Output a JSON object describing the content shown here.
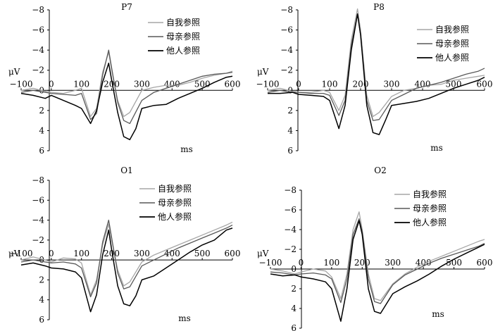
{
  "chart_data": [
    {
      "type": "line",
      "title": "P7",
      "xlabel": "ms",
      "ylabel": "μV",
      "xlim": [
        -100,
        600
      ],
      "ylim": [
        6,
        -8
      ],
      "y_inverted": true,
      "xticks": [
        -100,
        0,
        100,
        200,
        300,
        400,
        500,
        600
      ],
      "yticks": [
        -8,
        -6,
        -4,
        -2,
        0,
        2,
        4,
        6
      ],
      "legend": "top-right",
      "series": [
        {
          "name": "自我参照",
          "color": "#a6a6a6",
          "x": [
            -100,
            -60,
            -20,
            0,
            40,
            80,
            100,
            130,
            150,
            170,
            190,
            200,
            220,
            240,
            260,
            300,
            340,
            380,
            420,
            460,
            500,
            540,
            580,
            600
          ],
          "y": [
            0.0,
            -0.2,
            0.1,
            0.2,
            0.3,
            0.0,
            -0.2,
            2.6,
            1.8,
            -1.8,
            -3.8,
            -2.0,
            1.0,
            2.6,
            2.2,
            0.0,
            -0.3,
            -0.5,
            -0.5,
            -0.8,
            -1.2,
            -1.5,
            -1.7,
            -1.9
          ]
        },
        {
          "name": "母亲参照",
          "color": "#595959",
          "x": [
            -100,
            -60,
            -20,
            0,
            40,
            80,
            100,
            130,
            150,
            170,
            190,
            200,
            220,
            240,
            260,
            300,
            340,
            380,
            420,
            460,
            500,
            540,
            580,
            600
          ],
          "y": [
            0.2,
            0.0,
            0.2,
            0.3,
            0.4,
            0.5,
            0.3,
            2.9,
            2.3,
            -1.5,
            -4.0,
            -2.2,
            1.2,
            3.0,
            3.3,
            1.0,
            0.2,
            -0.2,
            -0.6,
            -1.0,
            -1.4,
            -1.6,
            -1.7,
            -1.8
          ]
        },
        {
          "name": "他人参照",
          "color": "#000000",
          "x": [
            -100,
            -60,
            -20,
            0,
            40,
            80,
            100,
            130,
            150,
            170,
            190,
            200,
            220,
            240,
            260,
            280,
            300,
            340,
            380,
            420,
            460,
            500,
            540,
            580,
            600
          ],
          "y": [
            0.3,
            0.5,
            0.8,
            0.5,
            1.0,
            1.5,
            1.8,
            3.3,
            2.0,
            -0.8,
            -2.7,
            -1.0,
            2.2,
            4.6,
            4.9,
            3.8,
            1.8,
            1.5,
            1.4,
            0.8,
            0.3,
            -0.2,
            -0.8,
            -1.3,
            -1.4
          ]
        }
      ]
    },
    {
      "type": "line",
      "title": "P8",
      "xlabel": "ms",
      "ylabel": "μV",
      "xlim": [
        -100,
        600
      ],
      "ylim": [
        6,
        -8
      ],
      "y_inverted": true,
      "xticks": [
        -100,
        0,
        100,
        200,
        300,
        400,
        500,
        600
      ],
      "yticks": [
        -8,
        -6,
        -4,
        -2,
        0,
        2,
        4,
        6
      ],
      "legend": "top-right",
      "series": [
        {
          "name": "自我参照",
          "color": "#a6a6a6",
          "x": [
            -100,
            -60,
            -20,
            0,
            40,
            80,
            100,
            130,
            150,
            170,
            190,
            200,
            220,
            240,
            260,
            300,
            340,
            380,
            420,
            460,
            500,
            540,
            580,
            600
          ],
          "y": [
            0.0,
            -0.2,
            0.1,
            0.2,
            0.2,
            0.0,
            0.2,
            2.0,
            0.5,
            -5.0,
            -8.1,
            -6.0,
            0.5,
            2.6,
            2.2,
            0.6,
            0.0,
            -0.2,
            -0.5,
            -0.6,
            -1.0,
            -1.2,
            -1.4,
            -1.5
          ]
        },
        {
          "name": "母亲参照",
          "color": "#595959",
          "x": [
            -100,
            -60,
            -20,
            0,
            40,
            80,
            100,
            130,
            150,
            170,
            190,
            200,
            220,
            240,
            260,
            300,
            340,
            380,
            420,
            460,
            500,
            540,
            580,
            600
          ],
          "y": [
            0.2,
            0.0,
            0.2,
            0.2,
            0.3,
            0.3,
            0.5,
            2.5,
            1.0,
            -4.5,
            -7.6,
            -5.5,
            1.0,
            3.0,
            2.9,
            1.0,
            0.4,
            -0.2,
            -0.5,
            -0.8,
            -1.2,
            -1.6,
            -1.9,
            -2.2
          ]
        },
        {
          "name": "他人参照",
          "color": "#000000",
          "x": [
            -100,
            -60,
            -20,
            0,
            40,
            80,
            100,
            130,
            150,
            170,
            190,
            200,
            220,
            240,
            260,
            280,
            300,
            340,
            380,
            420,
            460,
            500,
            540,
            580,
            600
          ],
          "y": [
            0.3,
            0.3,
            0.2,
            0.4,
            0.5,
            0.6,
            1.0,
            3.8,
            1.5,
            -4.0,
            -7.6,
            -5.5,
            1.5,
            4.2,
            4.4,
            3.0,
            1.5,
            1.3,
            1.1,
            0.8,
            0.3,
            -0.2,
            -0.6,
            -1.0,
            -1.3
          ]
        }
      ]
    },
    {
      "type": "line",
      "title": "O1",
      "xlabel": "ms",
      "ylabel": "μV",
      "xlim": [
        -100,
        600
      ],
      "ylim": [
        6,
        -8
      ],
      "y_inverted": true,
      "xticks": [
        -100,
        0,
        100,
        200,
        300,
        400,
        500,
        600
      ],
      "yticks": [
        -8,
        -6,
        -4,
        -2,
        0,
        2,
        4,
        6
      ],
      "legend": "top-right",
      "series": [
        {
          "name": "自我参照",
          "color": "#a6a6a6",
          "x": [
            -100,
            -60,
            -20,
            0,
            40,
            80,
            100,
            130,
            150,
            170,
            190,
            200,
            220,
            240,
            260,
            300,
            340,
            380,
            420,
            460,
            500,
            540,
            580,
            600
          ],
          "y": [
            0.0,
            -0.3,
            0.0,
            0.2,
            -0.2,
            -0.1,
            0.3,
            3.5,
            2.0,
            -1.5,
            -3.6,
            -2.0,
            1.0,
            2.6,
            2.2,
            0.2,
            -0.5,
            -1.0,
            -1.5,
            -2.0,
            -2.5,
            -3.0,
            -3.5,
            -3.8
          ]
        },
        {
          "name": "母亲参照",
          "color": "#595959",
          "x": [
            -100,
            -60,
            -20,
            0,
            40,
            80,
            100,
            130,
            150,
            170,
            190,
            200,
            220,
            240,
            260,
            300,
            340,
            380,
            420,
            460,
            500,
            540,
            580,
            600
          ],
          "y": [
            0.2,
            0.0,
            0.2,
            0.3,
            0.2,
            0.4,
            0.8,
            3.7,
            2.3,
            -1.8,
            -4.0,
            -2.2,
            1.3,
            2.9,
            2.7,
            0.6,
            0.0,
            -0.6,
            -1.2,
            -1.7,
            -2.2,
            -2.7,
            -3.2,
            -3.5
          ]
        },
        {
          "name": "他人参照",
          "color": "#000000",
          "x": [
            -100,
            -60,
            -20,
            0,
            40,
            80,
            100,
            130,
            150,
            170,
            190,
            200,
            220,
            240,
            260,
            280,
            300,
            340,
            380,
            420,
            460,
            500,
            540,
            580,
            600
          ],
          "y": [
            0.5,
            0.3,
            0.6,
            0.8,
            0.9,
            1.2,
            1.8,
            5.2,
            3.5,
            -0.5,
            -3.0,
            -1.0,
            2.6,
            4.4,
            4.6,
            3.6,
            2.0,
            1.6,
            0.8,
            0.0,
            -0.8,
            -1.5,
            -2.0,
            -3.0,
            -3.2
          ]
        }
      ]
    },
    {
      "type": "line",
      "title": "O2",
      "xlabel": "ms",
      "ylabel": "μV",
      "xlim": [
        -100,
        600
      ],
      "ylim": [
        6,
        -8
      ],
      "y_inverted": true,
      "xticks": [
        -100,
        0,
        100,
        200,
        300,
        400,
        500,
        600
      ],
      "yticks": [
        -8,
        -6,
        -4,
        -2,
        0,
        2,
        4,
        6
      ],
      "legend": "top-right",
      "series": [
        {
          "name": "自我参照",
          "color": "#a6a6a6",
          "x": [
            -100,
            -60,
            -20,
            0,
            40,
            80,
            100,
            130,
            150,
            170,
            190,
            200,
            220,
            240,
            260,
            300,
            340,
            380,
            420,
            460,
            500,
            540,
            580,
            600
          ],
          "y": [
            0.0,
            0.2,
            0.5,
            0.3,
            0.0,
            0.2,
            0.8,
            3.0,
            0.5,
            -4.0,
            -5.8,
            -4.0,
            0.5,
            3.0,
            3.2,
            1.5,
            0.5,
            -0.2,
            -0.8,
            -1.3,
            -1.8,
            -2.3,
            -2.8,
            -3.0
          ]
        },
        {
          "name": "母亲参照",
          "color": "#595959",
          "x": [
            -100,
            -60,
            -20,
            0,
            40,
            80,
            100,
            130,
            150,
            170,
            190,
            200,
            220,
            240,
            260,
            300,
            340,
            380,
            420,
            460,
            500,
            540,
            580,
            600
          ],
          "y": [
            0.3,
            0.4,
            0.6,
            0.5,
            0.4,
            0.6,
            1.0,
            3.4,
            1.0,
            -3.5,
            -5.1,
            -3.8,
            1.0,
            3.3,
            3.5,
            1.6,
            0.6,
            0.0,
            -0.6,
            -1.1,
            -1.5,
            -1.9,
            -2.3,
            -2.6
          ]
        },
        {
          "name": "他人参照",
          "color": "#000000",
          "x": [
            -100,
            -60,
            -20,
            0,
            40,
            80,
            100,
            130,
            150,
            170,
            190,
            200,
            220,
            240,
            260,
            280,
            300,
            340,
            380,
            420,
            460,
            500,
            540,
            580,
            600
          ],
          "y": [
            0.5,
            0.7,
            0.6,
            0.8,
            1.0,
            1.3,
            2.0,
            5.3,
            2.0,
            -3.0,
            -4.9,
            -3.5,
            2.0,
            4.3,
            4.5,
            3.5,
            2.5,
            1.8,
            1.2,
            0.5,
            -0.3,
            -1.0,
            -1.6,
            -2.2,
            -2.5
          ]
        }
      ]
    }
  ]
}
